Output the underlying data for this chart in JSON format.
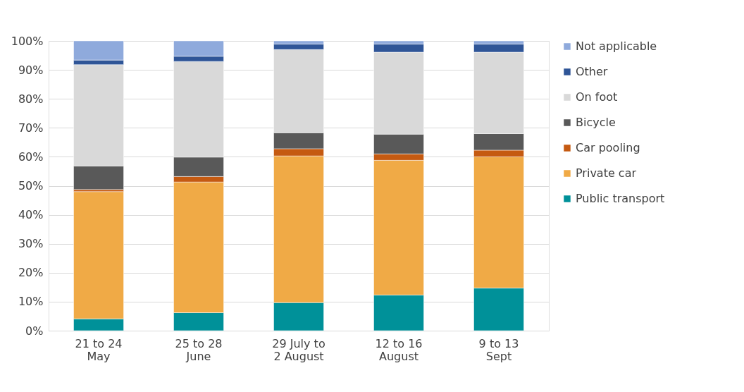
{
  "chart_data": {
    "type": "bar",
    "stacked": true,
    "categories": [
      "21 to 24\nMay",
      "25 to 28\nJune",
      "29 July to\n2 August",
      "12 to 16\nAugust",
      "9 to 13\nSept"
    ],
    "series": [
      {
        "name": "Public transport",
        "color": "#009199",
        "values": [
          4.1,
          6.2,
          9.7,
          12.3,
          14.7
        ]
      },
      {
        "name": "Private car",
        "color": "#f0aa46",
        "values": [
          43.9,
          45.1,
          50.6,
          46.5,
          45.3
        ]
      },
      {
        "name": "Car pooling",
        "color": "#c55a11",
        "values": [
          0.7,
          1.9,
          2.5,
          2.2,
          2.3
        ]
      },
      {
        "name": "Bicycle",
        "color": "#595959",
        "values": [
          8.1,
          6.7,
          5.5,
          6.8,
          5.7
        ]
      },
      {
        "name": "On foot",
        "color": "#d9d9d9",
        "values": [
          35.0,
          33.0,
          28.7,
          28.3,
          28.1
        ]
      },
      {
        "name": "Other",
        "color": "#2f5597",
        "values": [
          1.6,
          1.8,
          1.9,
          2.8,
          2.8
        ]
      },
      {
        "name": "Not applicable",
        "color": "#8faadc",
        "values": [
          6.6,
          5.3,
          1.1,
          1.1,
          1.1
        ]
      }
    ],
    "ylim": [
      0,
      100
    ],
    "yticks": [
      {
        "value": 0,
        "label": "0%"
      },
      {
        "value": 10,
        "label": "10%"
      },
      {
        "value": 20,
        "label": "20%"
      },
      {
        "value": 30,
        "label": "30%"
      },
      {
        "value": 40,
        "label": "40%"
      },
      {
        "value": 50,
        "label": "50%"
      },
      {
        "value": 60,
        "label": "60%"
      },
      {
        "value": 70,
        "label": "70%"
      },
      {
        "value": 80,
        "label": "80%"
      },
      {
        "value": 90,
        "label": "90%"
      },
      {
        "value": 100,
        "label": "100%"
      }
    ],
    "grid": "y",
    "legend": "right"
  }
}
